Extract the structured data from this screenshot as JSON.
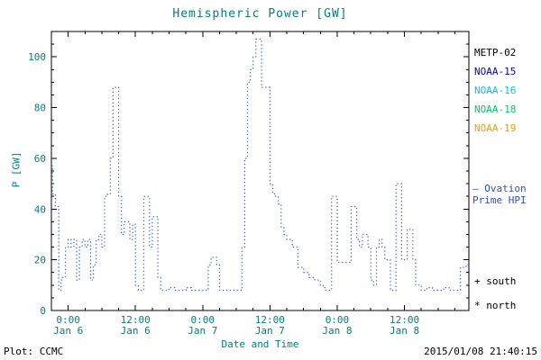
{
  "colors": {
    "title": "#008080",
    "axis_text": "#008080",
    "frame": "#000000",
    "line": "#4169e1",
    "side_label": "#2a52be"
  },
  "title": "Hemispheric Power [GW]",
  "legend": {
    "items": [
      {
        "label": "METP-02",
        "color": "#000000"
      },
      {
        "label": "NOAA-15",
        "color": "#0000cd"
      },
      {
        "label": "NOAA-16",
        "color": "#00bfff"
      },
      {
        "label": "NOAA-18",
        "color": "#00cc66"
      },
      {
        "label": "NOAA-19",
        "color": "#ff9900"
      }
    ]
  },
  "side_label": {
    "line1": "— Ovation",
    "line2": "Prime HPI"
  },
  "markers": {
    "south": "+ south",
    "north": "* north"
  },
  "footer": {
    "left": "Plot: CCMC",
    "right": "2015/01/08 21:40:15"
  },
  "chart_data": {
    "type": "line",
    "step": true,
    "linestyle": "dotted",
    "title": "Hemispheric Power [GW]",
    "xlabel": "Date and Time",
    "ylabel": "P [GW]",
    "x_units": "hours since 2015-01-06 00:00",
    "y_units": "GW",
    "xlim": [
      -3,
      71.5
    ],
    "ylim": [
      0,
      110
    ],
    "yticks": [
      0,
      20,
      40,
      60,
      80,
      100
    ],
    "y_minor_step": 5,
    "x_minor_step": 3,
    "xticks": [
      {
        "value": 0,
        "line1": "0:00",
        "line2": "Jan 6"
      },
      {
        "value": 12,
        "line1": "12:00",
        "line2": "Jan 6"
      },
      {
        "value": 24,
        "line1": "0:00",
        "line2": "Jan 7"
      },
      {
        "value": 36,
        "line1": "12:00",
        "line2": "Jan 7"
      },
      {
        "value": 48,
        "line1": "0:00",
        "line2": "Jan 8"
      },
      {
        "value": 60,
        "line1": "12:00",
        "line2": "Jan 8"
      }
    ],
    "x": [
      -3,
      -2.8,
      -2.3,
      -2,
      -1.7,
      -1.3,
      -1,
      -0.5,
      0,
      0.5,
      1,
      1.5,
      2,
      2.5,
      3,
      3.5,
      4,
      4.5,
      5,
      5.5,
      6,
      6.5,
      7,
      7.5,
      8,
      8.5,
      9,
      9.5,
      10,
      10.5,
      11,
      11.5,
      12,
      12.5,
      13,
      13.5,
      14,
      14.5,
      15,
      15.5,
      16,
      16.5,
      17,
      18,
      19,
      20,
      21,
      22,
      23,
      24,
      25,
      25.5,
      26,
      26.5,
      27,
      28,
      29,
      30,
      30.5,
      31,
      31.5,
      32,
      32.5,
      33,
      33.5,
      34,
      34.5,
      35,
      35.5,
      36,
      36.5,
      37,
      37.5,
      38,
      38.5,
      39,
      40,
      41,
      42,
      43,
      44,
      45,
      45.5,
      46,
      46.5,
      47,
      47.5,
      48,
      49,
      50,
      50.5,
      51,
      51.5,
      52,
      52.5,
      53,
      53.5,
      54,
      54.5,
      55,
      55.5,
      56,
      56.5,
      57,
      57.5,
      58,
      58.5,
      59,
      59.5,
      60,
      60.5,
      61,
      61.5,
      62,
      63,
      64,
      65,
      66,
      67,
      68,
      69,
      70,
      71,
      71.5
    ],
    "y": [
      57,
      46,
      41,
      41,
      8,
      12,
      13,
      25,
      28,
      25,
      28,
      12,
      25,
      28,
      25,
      28,
      12,
      18,
      28,
      30,
      25,
      45,
      46,
      60,
      88,
      88,
      45,
      30,
      35,
      35,
      28,
      34,
      10,
      8,
      8,
      45,
      45,
      25,
      37,
      37,
      13,
      8,
      8,
      9,
      8,
      8,
      9,
      8,
      8,
      8,
      18,
      21,
      21,
      18,
      8,
      8,
      8,
      8,
      8,
      25,
      60,
      90,
      95,
      100,
      107,
      107,
      88,
      88,
      88,
      50,
      46,
      45,
      42,
      33,
      30,
      28,
      25,
      17,
      15,
      13,
      12,
      10,
      9,
      8,
      8,
      45,
      45,
      19,
      19,
      19,
      41,
      41,
      28,
      25,
      30,
      30,
      25,
      12,
      10,
      25,
      28,
      25,
      20,
      20,
      8,
      8,
      50,
      50,
      20,
      20,
      32,
      32,
      20,
      10,
      8,
      9,
      8,
      8,
      9,
      8,
      8,
      17,
      18,
      18
    ]
  }
}
